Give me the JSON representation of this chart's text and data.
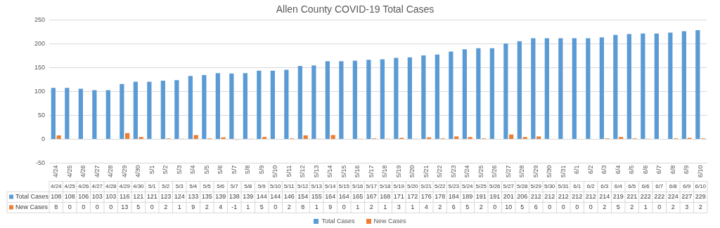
{
  "chart_data": {
    "type": "bar",
    "title": "Allen County COVID-19 Total Cases",
    "categories": [
      "4/24",
      "4/25",
      "4/26",
      "4/27",
      "4/28",
      "4/29",
      "4/30",
      "5/1",
      "5/2",
      "5/3",
      "5/4",
      "5/5",
      "5/6",
      "5/7",
      "5/8",
      "5/9",
      "5/10",
      "5/11",
      "5/12",
      "5/13",
      "5/14",
      "5/15",
      "5/16",
      "5/17",
      "5/18",
      "5/19",
      "5/20",
      "5/21",
      "5/22",
      "5/23",
      "5/24",
      "5/25",
      "5/26",
      "5/27",
      "5/28",
      "5/29",
      "5/30",
      "5/31",
      "6/1",
      "6/2",
      "6/3",
      "6/4",
      "6/5",
      "6/6",
      "6/7",
      "6/8",
      "6/9",
      "6/10"
    ],
    "series": [
      {
        "name": "Total Cases",
        "color": "#5b9bd5",
        "values": [
          108,
          108,
          106,
          103,
          103,
          116,
          121,
          121,
          123,
          124,
          133,
          135,
          139,
          138,
          139,
          144,
          144,
          146,
          154,
          155,
          164,
          164,
          165,
          167,
          168,
          171,
          172,
          176,
          178,
          184,
          189,
          191,
          191,
          201,
          206,
          212,
          212,
          212,
          212,
          212,
          214,
          219,
          221,
          222,
          222,
          224,
          227,
          229
        ]
      },
      {
        "name": "New Cases",
        "color": "#ed7d31",
        "values": [
          8,
          0,
          0,
          0,
          0,
          13,
          5,
          0,
          2,
          1,
          9,
          2,
          4,
          -1,
          1,
          5,
          0,
          2,
          8,
          1,
          9,
          0,
          1,
          2,
          1,
          3,
          1,
          4,
          2,
          6,
          5,
          2,
          0,
          10,
          5,
          6,
          0,
          0,
          0,
          0,
          2,
          5,
          2,
          1,
          0,
          2,
          3,
          2
        ]
      }
    ],
    "ylim": [
      -50,
      250
    ],
    "yticks": [
      -50,
      0,
      50,
      100,
      150,
      200,
      250
    ],
    "grid": "y",
    "legend": "bottom",
    "data_labels": true
  }
}
